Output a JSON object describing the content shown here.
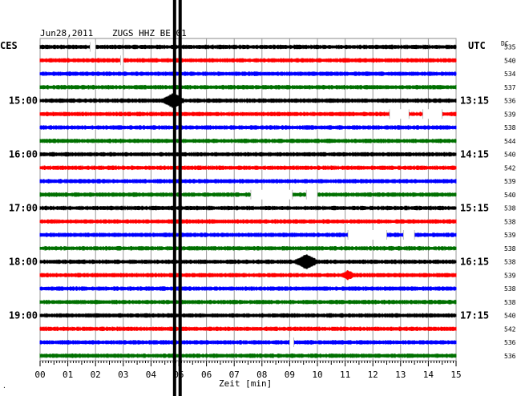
{
  "header": {
    "date": "Jun28,2011",
    "station": "ZUGS HHZ BE 01",
    "left_timezone": "CES",
    "right_timezone": "UTC",
    "dc_label": "DC"
  },
  "chart_data": {
    "type": "line",
    "title": "Jun28,2011   ZUGS HHZ BE 01",
    "xlabel": "Zeit [min]",
    "ylabel": "",
    "xlim": [
      0,
      15
    ],
    "x_ticks": [
      "00",
      "01",
      "02",
      "03",
      "04",
      "05",
      "06",
      "07",
      "08",
      "09",
      "10",
      "11",
      "12",
      "13",
      "14",
      "15"
    ],
    "grid": true,
    "left_hour_labels": [
      {
        "label": "15:00",
        "trace": 4
      },
      {
        "label": "16:00",
        "trace": 8
      },
      {
        "label": "17:00",
        "trace": 12
      },
      {
        "label": "18:00",
        "trace": 16
      },
      {
        "label": "19:00",
        "trace": 20
      }
    ],
    "right_time_labels": [
      {
        "label": "13:15",
        "trace": 4
      },
      {
        "label": "14:15",
        "trace": 8
      },
      {
        "label": "15:15",
        "trace": 12
      },
      {
        "label": "16:15",
        "trace": 16
      },
      {
        "label": "17:15",
        "trace": 20
      }
    ],
    "trace_colors": [
      "#000000",
      "#ff0000",
      "#0000ff",
      "#007000"
    ],
    "dc_offsets": [
      535,
      540,
      534,
      537,
      536,
      539,
      538,
      544,
      540,
      542,
      539,
      540,
      538,
      538,
      539,
      538,
      538,
      539,
      538,
      538,
      540,
      542,
      536,
      536
    ],
    "data_gaps": [
      {
        "trace": 0,
        "from": 1.8,
        "to": 2.0
      },
      {
        "trace": 1,
        "from": 2.9,
        "to": 3.0
      },
      {
        "trace": 5,
        "from": 12.6,
        "to": 13.3
      },
      {
        "trace": 5,
        "from": 13.8,
        "to": 14.5
      },
      {
        "trace": 11,
        "from": 7.6,
        "to": 9.1
      },
      {
        "trace": 11,
        "from": 9.6,
        "to": 10.0
      },
      {
        "trace": 14,
        "from": 11.1,
        "to": 12.5
      },
      {
        "trace": 14,
        "from": 13.1,
        "to": 13.5
      },
      {
        "trace": 22,
        "from": 9.0,
        "to": 9.15
      }
    ],
    "events": [
      {
        "trace": 4,
        "x": 4.8,
        "amplitude": "large"
      },
      {
        "trace": 16,
        "x": 9.6,
        "amplitude": "large"
      },
      {
        "trace": 17,
        "x": 11.1,
        "amplitude": "small"
      }
    ],
    "marker_lines_min": [
      4.85,
      5.05
    ],
    "footer_mark": "."
  }
}
